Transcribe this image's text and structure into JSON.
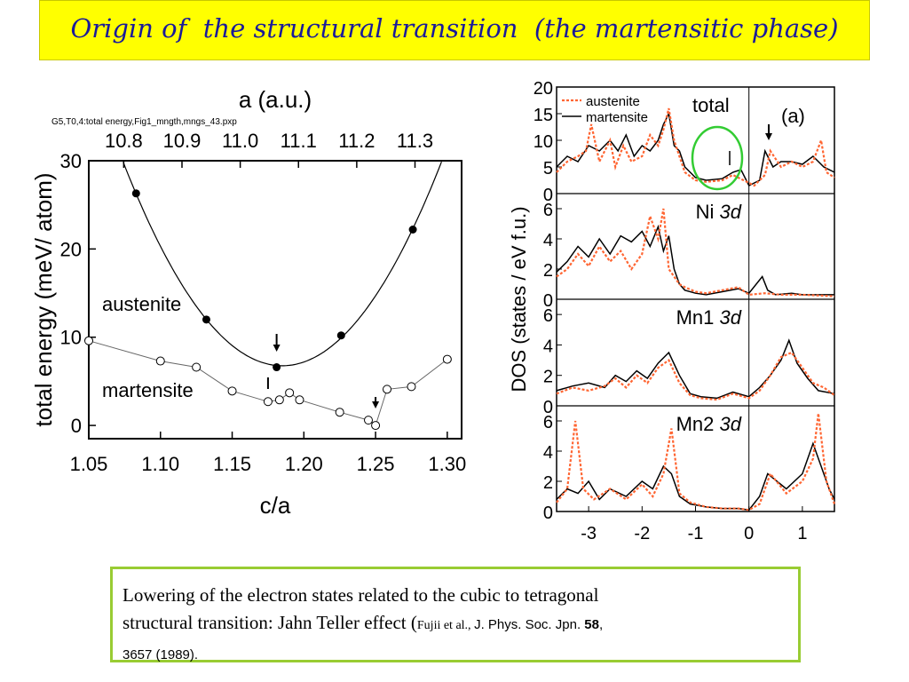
{
  "title": "Origin of  the structural transition  (the martensitic phase)",
  "caption": {
    "line1": "Lowering of the electron states related to the cubic to tetragonal",
    "line2_a": "structural transition: Jahn Teller effect (",
    "line2_b": "Fujii et al., ",
    "line2_c": "J. Phys. Soc. Jpn. ",
    "line2_d": "58",
    "line2_e": ",",
    "line3": "3657 (1989)."
  },
  "colors": {
    "title_bg": "#ffff00",
    "title_text": "#1a1a9a",
    "caption_border": "#99cc33",
    "austenite": "#ff6633",
    "martensite": "#000000",
    "circle": "#33cc33"
  },
  "chart_data": [
    {
      "type": "scatter",
      "file_note": "G5,T0,4:total energy,Fig1_mngth,mngs_43.pxp",
      "xlabel": "c/a",
      "top_xlabel": "a (a.u.)",
      "ylabel": "total energy (meV/ atom)",
      "xlim": [
        1.05,
        1.31
      ],
      "ylim": [
        -1.5,
        30
      ],
      "top_xlim": [
        10.74,
        11.38
      ],
      "x_ticks": [
        "1.05",
        "1.10",
        "1.15",
        "1.20",
        "1.25",
        "1.30"
      ],
      "top_ticks": [
        "10.8",
        "10.9",
        "11.0",
        "11.1",
        "11.2",
        "11.3"
      ],
      "y_ticks": [
        "0",
        "10",
        "20",
        "30"
      ],
      "series": [
        {
          "name": "austenite",
          "marker": "filled",
          "x": [
            1.083,
            1.132,
            1.181,
            1.226,
            1.276
          ],
          "y": [
            26.3,
            12.0,
            6.6,
            10.2,
            22.2
          ]
        },
        {
          "name": "martensite",
          "marker": "open",
          "x": [
            1.05,
            1.1,
            1.125,
            1.15,
            1.175,
            1.183,
            1.19,
            1.197,
            1.225,
            1.245,
            1.25,
            1.258,
            1.275,
            1.3
          ],
          "y": [
            9.6,
            7.3,
            6.6,
            3.9,
            2.7,
            2.9,
            3.7,
            2.9,
            1.5,
            0.6,
            0.0,
            4.1,
            4.4,
            7.5
          ]
        }
      ],
      "annotations": [
        "arrow at c/a 1.181 (austenite minimum)",
        "arrow at c/a 1.25 (martensite minimum)"
      ]
    },
    {
      "type": "line",
      "ylabel": "DOS (states / eV f.u.)",
      "xlim": [
        -3.6,
        1.6
      ],
      "x_ticks": [
        "-3",
        "-2",
        "-1",
        "0",
        "1"
      ],
      "legend": [
        "austenite",
        "martensite"
      ],
      "panel_label": "(a)",
      "panels": [
        {
          "label": "total",
          "label_suffix": "",
          "ylim": [
            0,
            20
          ],
          "y_ticks": [
            "0",
            "5",
            "10",
            "15",
            "20"
          ],
          "series": [
            {
              "name": "austenite",
              "x": [
                -3.6,
                -3.4,
                -3.2,
                -3.05,
                -2.95,
                -2.8,
                -2.6,
                -2.5,
                -2.35,
                -2.2,
                -2.0,
                -1.85,
                -1.7,
                -1.6,
                -1.5,
                -1.4,
                -1.3,
                -1.2,
                -1.0,
                -0.8,
                -0.5,
                -0.3,
                -0.1,
                0.1,
                0.3,
                0.4,
                0.6,
                0.8,
                1.0,
                1.2,
                1.35,
                1.45,
                1.6
              ],
              "y": [
                4,
                6,
                7,
                8,
                13,
                6,
                10,
                5,
                9,
                6,
                7,
                11,
                9,
                12,
                16,
                10,
                7,
                4,
                2.5,
                2.2,
                2.5,
                3.5,
                2.5,
                1.5,
                3.5,
                8,
                5,
                6,
                5,
                6,
                10,
                4,
                3
              ]
            },
            {
              "name": "martensite",
              "x": [
                -3.6,
                -3.4,
                -3.2,
                -3.0,
                -2.8,
                -2.6,
                -2.45,
                -2.3,
                -2.15,
                -2.0,
                -1.85,
                -1.7,
                -1.6,
                -1.5,
                -1.4,
                -1.3,
                -1.2,
                -1.0,
                -0.8,
                -0.5,
                -0.3,
                -0.15,
                0.0,
                0.2,
                0.3,
                0.45,
                0.6,
                0.8,
                1.0,
                1.2,
                1.4,
                1.6
              ],
              "y": [
                5,
                7,
                6,
                9,
                8,
                10,
                8,
                11,
                7,
                9,
                8,
                10,
                13,
                15,
                9,
                8,
                5,
                3,
                2.5,
                2.8,
                4,
                4.5,
                1.5,
                2.5,
                8,
                5,
                6,
                6,
                5.5,
                7,
                5,
                4
              ]
            }
          ]
        },
        {
          "label": "Ni ",
          "label_suffix": "3d",
          "ylim": [
            0,
            7
          ],
          "y_ticks": [
            "0",
            "2",
            "4",
            "6"
          ],
          "series": [
            {
              "name": "austenite",
              "x": [
                -3.6,
                -3.4,
                -3.2,
                -3.0,
                -2.8,
                -2.6,
                -2.4,
                -2.2,
                -2.0,
                -1.85,
                -1.7,
                -1.6,
                -1.5,
                -1.4,
                -1.3,
                -1.2,
                -1.0,
                -0.8,
                -0.5,
                -0.2,
                0.0,
                0.3,
                0.6,
                1.0,
                1.6
              ],
              "y": [
                1.5,
                2.0,
                3.0,
                2.2,
                3.5,
                2.5,
                3.2,
                2.0,
                3.0,
                5.5,
                4.0,
                6.0,
                2.0,
                1.5,
                1.0,
                0.8,
                0.5,
                0.4,
                0.6,
                0.8,
                0.3,
                0.4,
                0.3,
                0.3,
                0.2
              ]
            },
            {
              "name": "martensite",
              "x": [
                -3.6,
                -3.4,
                -3.2,
                -3.0,
                -2.8,
                -2.6,
                -2.4,
                -2.2,
                -2.0,
                -1.85,
                -1.7,
                -1.6,
                -1.5,
                -1.4,
                -1.3,
                -1.2,
                -1.0,
                -0.8,
                -0.5,
                -0.2,
                0.0,
                0.25,
                0.35,
                0.5,
                0.8,
                1.0,
                1.6
              ],
              "y": [
                1.8,
                2.5,
                3.5,
                2.8,
                4.0,
                3.0,
                4.2,
                3.8,
                4.5,
                3.5,
                4.8,
                3.2,
                4.2,
                2.0,
                1.0,
                0.6,
                0.4,
                0.3,
                0.5,
                0.7,
                0.4,
                1.5,
                0.6,
                0.3,
                0.4,
                0.3,
                0.3
              ]
            }
          ]
        },
        {
          "label": "Mn1 ",
          "label_suffix": "3d",
          "ylim": [
            0,
            7
          ],
          "y_ticks": [
            "0",
            "2",
            "4",
            "6"
          ],
          "series": [
            {
              "name": "austenite",
              "x": [
                -3.6,
                -3.3,
                -3.0,
                -2.7,
                -2.5,
                -2.3,
                -2.1,
                -1.9,
                -1.7,
                -1.5,
                -1.3,
                -1.1,
                -0.9,
                -0.6,
                -0.3,
                0.0,
                0.2,
                0.4,
                0.6,
                0.8,
                1.0,
                1.2,
                1.4,
                1.6
              ],
              "y": [
                0.8,
                1.2,
                1.0,
                1.3,
                1.8,
                1.2,
                2.0,
                1.5,
                2.5,
                3.0,
                1.5,
                0.7,
                0.5,
                0.4,
                0.8,
                0.5,
                1.0,
                2.0,
                3.2,
                3.5,
                2.5,
                1.5,
                1.2,
                0.7
              ]
            },
            {
              "name": "martensite",
              "x": [
                -3.6,
                -3.3,
                -3.0,
                -2.7,
                -2.5,
                -2.3,
                -2.1,
                -1.9,
                -1.7,
                -1.5,
                -1.3,
                -1.1,
                -0.9,
                -0.6,
                -0.3,
                0.0,
                0.2,
                0.4,
                0.6,
                0.75,
                0.9,
                1.1,
                1.3,
                1.6
              ],
              "y": [
                1.0,
                1.3,
                1.5,
                1.2,
                2.0,
                1.6,
                2.3,
                1.8,
                2.8,
                3.5,
                2.0,
                0.8,
                0.6,
                0.5,
                0.9,
                0.6,
                1.2,
                2.0,
                3.0,
                4.3,
                2.8,
                1.8,
                1.0,
                0.8
              ]
            }
          ]
        },
        {
          "label": "Mn2 ",
          "label_suffix": "3d",
          "ylim": [
            0,
            7
          ],
          "y_ticks": [
            "0",
            "2",
            "4",
            "6"
          ],
          "series": [
            {
              "name": "austenite",
              "x": [
                -3.6,
                -3.4,
                -3.25,
                -3.1,
                -2.9,
                -2.6,
                -2.3,
                -2.0,
                -1.8,
                -1.6,
                -1.45,
                -1.3,
                -1.1,
                -0.8,
                -0.5,
                -0.2,
                0.0,
                0.2,
                0.4,
                0.7,
                1.0,
                1.2,
                1.3,
                1.45,
                1.6
              ],
              "y": [
                0.6,
                1.5,
                6.0,
                1.5,
                0.8,
                1.5,
                0.8,
                1.8,
                1.0,
                2.5,
                5.5,
                1.2,
                0.6,
                0.3,
                0.2,
                0.2,
                0.1,
                0.5,
                2.5,
                1.2,
                2.0,
                3.5,
                6.5,
                2.0,
                0.5
              ]
            },
            {
              "name": "martensite",
              "x": [
                -3.6,
                -3.4,
                -3.2,
                -3.0,
                -2.8,
                -2.6,
                -2.3,
                -2.0,
                -1.8,
                -1.6,
                -1.45,
                -1.3,
                -1.1,
                -0.8,
                -0.5,
                -0.2,
                0.0,
                0.2,
                0.35,
                0.7,
                1.0,
                1.2,
                1.35,
                1.5,
                1.6
              ],
              "y": [
                0.8,
                1.5,
                1.2,
                2.0,
                0.8,
                1.5,
                1.0,
                2.0,
                1.5,
                3.0,
                2.5,
                1.0,
                0.5,
                0.3,
                0.2,
                0.2,
                0.1,
                1.0,
                2.5,
                1.5,
                2.5,
                4.5,
                3.0,
                1.5,
                0.8
              ]
            }
          ]
        }
      ]
    }
  ]
}
